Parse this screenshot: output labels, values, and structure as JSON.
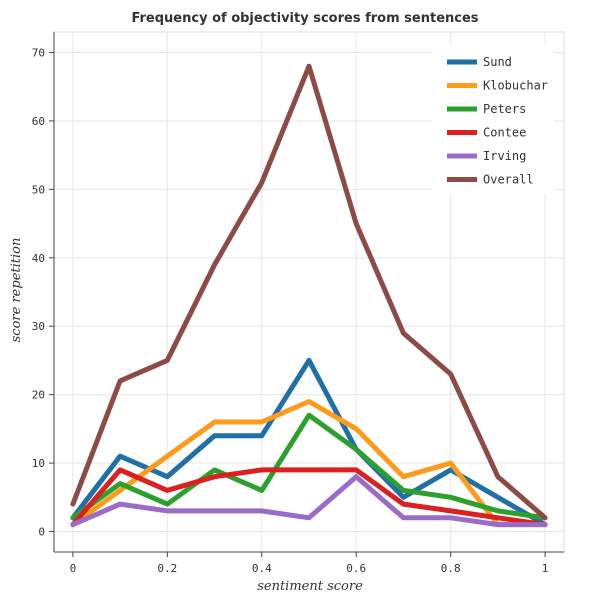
{
  "chart_data": {
    "type": "line",
    "title": "Frequency of objectivity scores from sentences",
    "xlabel": "sentiment score",
    "ylabel": "score repetition",
    "xlim": [
      -0.04,
      1.04
    ],
    "ylim": [
      -3,
      73
    ],
    "x_ticks": [
      "0",
      "0.2",
      "0.4",
      "0.6",
      "0.8",
      "1"
    ],
    "x_tick_values": [
      0,
      0.2,
      0.4,
      0.6,
      0.8,
      1
    ],
    "y_ticks": [
      "0",
      "10",
      "20",
      "30",
      "40",
      "50",
      "60",
      "70"
    ],
    "y_tick_values": [
      0,
      10,
      20,
      30,
      40,
      50,
      60,
      70
    ],
    "grid": true,
    "legend_position": "top-right",
    "x": [
      0,
      0.1,
      0.2,
      0.3,
      0.4,
      0.5,
      0.6,
      0.7,
      0.8,
      0.9,
      1
    ],
    "series": [
      {
        "name": "Sund",
        "color": "#1f6fa8",
        "values": [
          2,
          11,
          8,
          14,
          14,
          25,
          12,
          5,
          9,
          5,
          1
        ]
      },
      {
        "name": "Klobuchar",
        "color": "#ff9a1a",
        "values": [
          1,
          6,
          11,
          16,
          16,
          19,
          15,
          8,
          10,
          1,
          1
        ]
      },
      {
        "name": "Peters",
        "color": "#2ca02c",
        "values": [
          2,
          7,
          4,
          9,
          6,
          17,
          12,
          6,
          5,
          3,
          2
        ]
      },
      {
        "name": "Contee",
        "color": "#dc1f1f",
        "values": [
          1,
          9,
          6,
          8,
          9,
          9,
          9,
          4,
          3,
          2,
          1
        ]
      },
      {
        "name": "Irving",
        "color": "#9b6bc9",
        "values": [
          1,
          4,
          3,
          3,
          3,
          2,
          8,
          2,
          2,
          1,
          1
        ]
      },
      {
        "name": "Overall",
        "color": "#8c4b45",
        "values": [
          4,
          22,
          25,
          39,
          51,
          68,
          45,
          29,
          23,
          8,
          2
        ]
      }
    ]
  }
}
